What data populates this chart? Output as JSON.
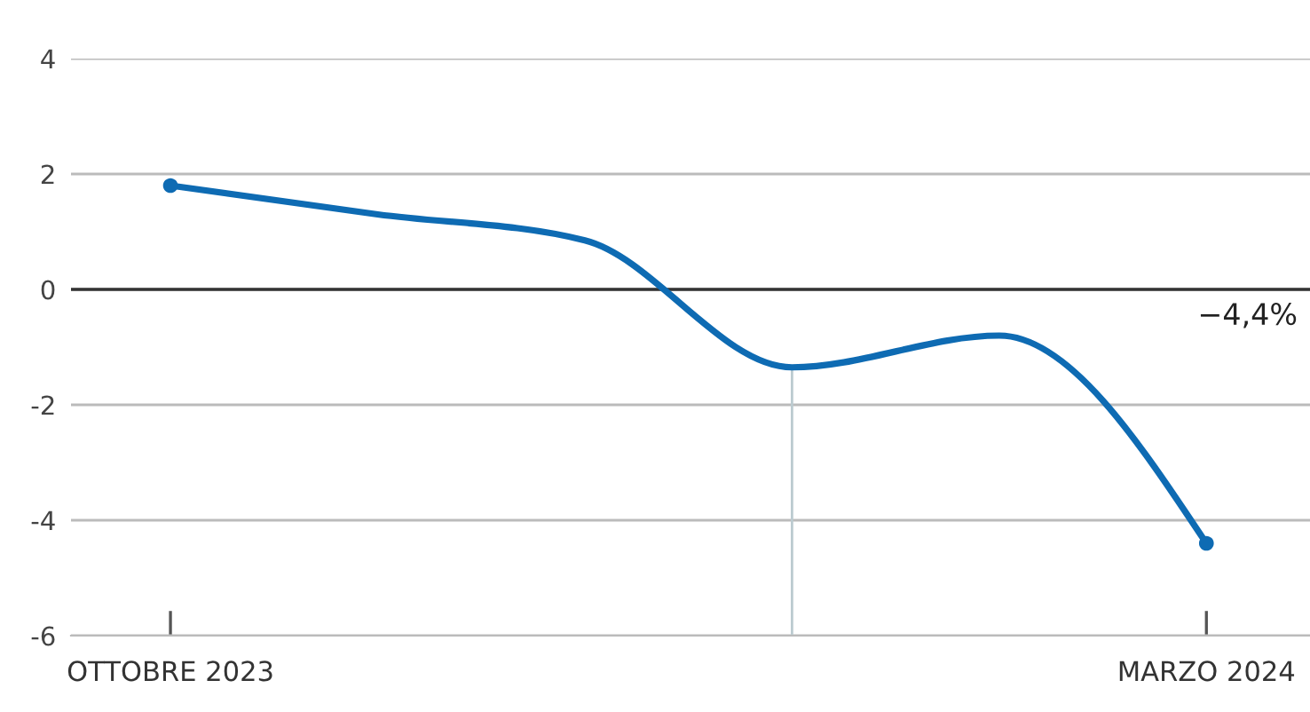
{
  "chart_data": {
    "type": "line",
    "categories": [
      "OTTOBRE 2023",
      null,
      null,
      null,
      null,
      "MARZO 2024"
    ],
    "series": [
      {
        "color": "#0e6bb3",
        "values": [
          1.8,
          1.3,
          0.85,
          -1.35,
          -0.8,
          -4.4
        ]
      },
      {
        "type": "scatter",
        "color": "#0e6bb3",
        "values": [
          1.8,
          null,
          null,
          null,
          null,
          -4.4
        ],
        "marker": "circle"
      }
    ],
    "ylim": [
      -6,
      4
    ],
    "yticks": [
      -6,
      -4,
      -2,
      0,
      2,
      4
    ],
    "grid": "y",
    "ref_lines": [
      {
        "axis": "y",
        "value": 0,
        "color": "#333333"
      }
    ],
    "annotations": [
      "−4,4%"
    ],
    "line_style": "solid",
    "legend": false
  }
}
